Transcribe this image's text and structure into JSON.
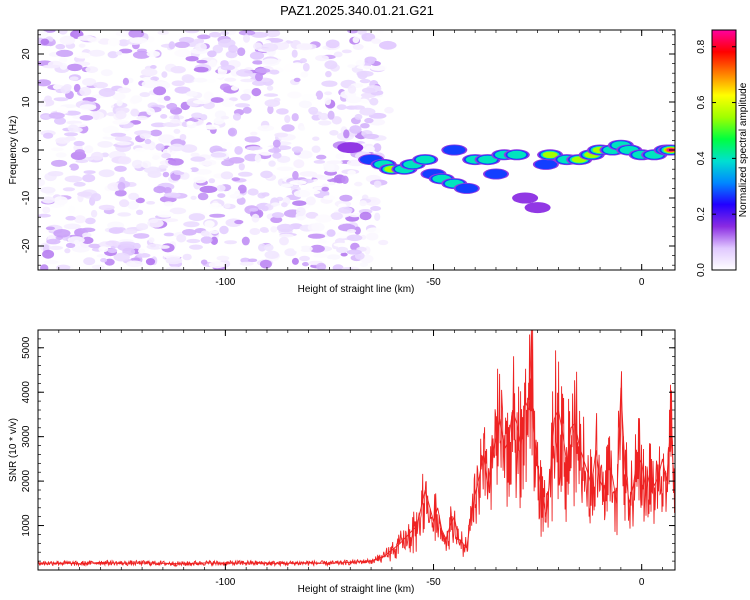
{
  "figure": {
    "title": "PAZ1.2025.340.01.21.G21"
  },
  "chart_data": [
    {
      "type": "heatmap",
      "title": "PAZ1.2025.340.01.21.G21",
      "xlabel": "Height of straight line (km)",
      "ylabel": "Frequency (Hz)",
      "xlim": [
        -145,
        8
      ],
      "ylim": [
        -25,
        25
      ],
      "xticks": [
        -100,
        -50,
        0
      ],
      "xtick_labels": [
        "-100",
        "-50",
        "0"
      ],
      "yticks": [
        -20,
        -10,
        0,
        10,
        20
      ],
      "ytick_labels": [
        "-20",
        "-10",
        "0",
        "10",
        "20"
      ],
      "colorbar": {
        "label": "Normalized spectral amplitude",
        "range": [
          0,
          0.86
        ],
        "ticks": [
          0,
          0.2,
          0.4,
          0.6,
          0.8
        ],
        "tick_labels": [
          "0.0",
          "0.2",
          "0.4",
          "0.6",
          "0.8"
        ],
        "colormap": [
          "#ffffff",
          "#e0c8ff",
          "#8a2be2",
          "#2200ff",
          "#0088ff",
          "#00e0d0",
          "#00ff40",
          "#a0ff00",
          "#ffff00",
          "#ff8000",
          "#ff0000",
          "#ff00a0"
        ]
      },
      "noise_region": {
        "x_range": [
          -145,
          -63
        ],
        "y_range": [
          -25,
          25
        ],
        "amplitude_range": [
          0.0,
          0.12
        ]
      },
      "signal_ridge": [
        {
          "x": -70,
          "y": 0.5,
          "amp": 0.15
        },
        {
          "x": -65,
          "y": -2,
          "amp": 0.3
        },
        {
          "x": -62,
          "y": -3,
          "amp": 0.45
        },
        {
          "x": -60,
          "y": -4,
          "amp": 0.5
        },
        {
          "x": -57,
          "y": -4,
          "amp": 0.45
        },
        {
          "x": -55,
          "y": -3,
          "amp": 0.35
        },
        {
          "x": -52,
          "y": -2,
          "amp": 0.4
        },
        {
          "x": -50,
          "y": -5,
          "amp": 0.3
        },
        {
          "x": -48,
          "y": -6,
          "amp": 0.4
        },
        {
          "x": -45,
          "y": -7,
          "amp": 0.35
        },
        {
          "x": -42,
          "y": -8,
          "amp": 0.3
        },
        {
          "x": -45,
          "y": 0,
          "amp": 0.3
        },
        {
          "x": -40,
          "y": -2,
          "amp": 0.45
        },
        {
          "x": -37,
          "y": -2,
          "amp": 0.35
        },
        {
          "x": -35,
          "y": -5,
          "amp": 0.3
        },
        {
          "x": -33,
          "y": -1,
          "amp": 0.4
        },
        {
          "x": -30,
          "y": -1,
          "amp": 0.45
        },
        {
          "x": -28,
          "y": -10,
          "amp": 0.2
        },
        {
          "x": -25,
          "y": -12,
          "amp": 0.2
        },
        {
          "x": -23,
          "y": -3,
          "amp": 0.25
        },
        {
          "x": -22,
          "y": -1,
          "amp": 0.5
        },
        {
          "x": -18,
          "y": -2,
          "amp": 0.45
        },
        {
          "x": -15,
          "y": -2,
          "amp": 0.5
        },
        {
          "x": -12,
          "y": -1,
          "amp": 0.55
        },
        {
          "x": -10,
          "y": 0,
          "amp": 0.5
        },
        {
          "x": -7,
          "y": 0,
          "amp": 0.45
        },
        {
          "x": -5,
          "y": 1,
          "amp": 0.4
        },
        {
          "x": -3,
          "y": 0,
          "amp": 0.45
        },
        {
          "x": 0,
          "y": -1,
          "amp": 0.35
        },
        {
          "x": 3,
          "y": -1,
          "amp": 0.4
        },
        {
          "x": 6,
          "y": 0,
          "amp": 0.5
        },
        {
          "x": 7,
          "y": 0,
          "amp": 0.85
        }
      ]
    },
    {
      "type": "line",
      "xlabel": "Height of straight line (km)",
      "ylabel": "SNR (10 * v/v)",
      "xlim": [
        -145,
        8
      ],
      "ylim": [
        0,
        5400
      ],
      "xticks": [
        -100,
        -50,
        0
      ],
      "xtick_labels": [
        "-100",
        "-50",
        "0"
      ],
      "yticks": [
        1000,
        2000,
        3000,
        4000,
        5000
      ],
      "ytick_labels": [
        "1000",
        "2000",
        "3000",
        "4000",
        "5000"
      ],
      "line_color": "#ee2222",
      "series": [
        {
          "name": "SNR",
          "x": [
            -145,
            -140,
            -135,
            -130,
            -125,
            -120,
            -115,
            -110,
            -105,
            -100,
            -95,
            -90,
            -85,
            -80,
            -75,
            -70,
            -65,
            -62,
            -60,
            -58,
            -56,
            -54,
            -52,
            -50,
            -49,
            -48,
            -47,
            -46,
            -45,
            -44,
            -43,
            -42,
            -41,
            -40,
            -39,
            -38,
            -37,
            -36,
            -35,
            -34,
            -33,
            -32,
            -31,
            -30,
            -29,
            -28,
            -27,
            -26.5,
            -26,
            -25,
            -24,
            -23,
            -22,
            -21,
            -20,
            -19,
            -18,
            -17,
            -16,
            -15,
            -14,
            -13,
            -12,
            -11,
            -10,
            -9,
            -8,
            -7,
            -6,
            -5,
            -4,
            -3,
            -2,
            -1,
            0,
            1,
            2,
            3,
            4,
            5,
            6,
            7,
            8
          ],
          "values": [
            150,
            160,
            140,
            170,
            150,
            160,
            150,
            140,
            160,
            150,
            160,
            150,
            150,
            160,
            150,
            170,
            200,
            300,
            450,
            600,
            800,
            1000,
            1800,
            1100,
            1400,
            900,
            700,
            1000,
            1200,
            700,
            600,
            500,
            1200,
            1700,
            2100,
            2600,
            1900,
            2500,
            3000,
            3400,
            2700,
            2900,
            3600,
            3300,
            2800,
            3800,
            3600,
            5400,
            3200,
            2300,
            1800,
            1200,
            2100,
            3400,
            3600,
            3100,
            2400,
            3200,
            3300,
            2800,
            2500,
            2200,
            1900,
            2700,
            2000,
            1800,
            2400,
            2100,
            1500,
            4100,
            2300,
            1500,
            1900,
            2600,
            2400,
            1800,
            2200,
            1900,
            2100,
            2500,
            2000,
            3300,
            1600
          ]
        }
      ]
    }
  ]
}
